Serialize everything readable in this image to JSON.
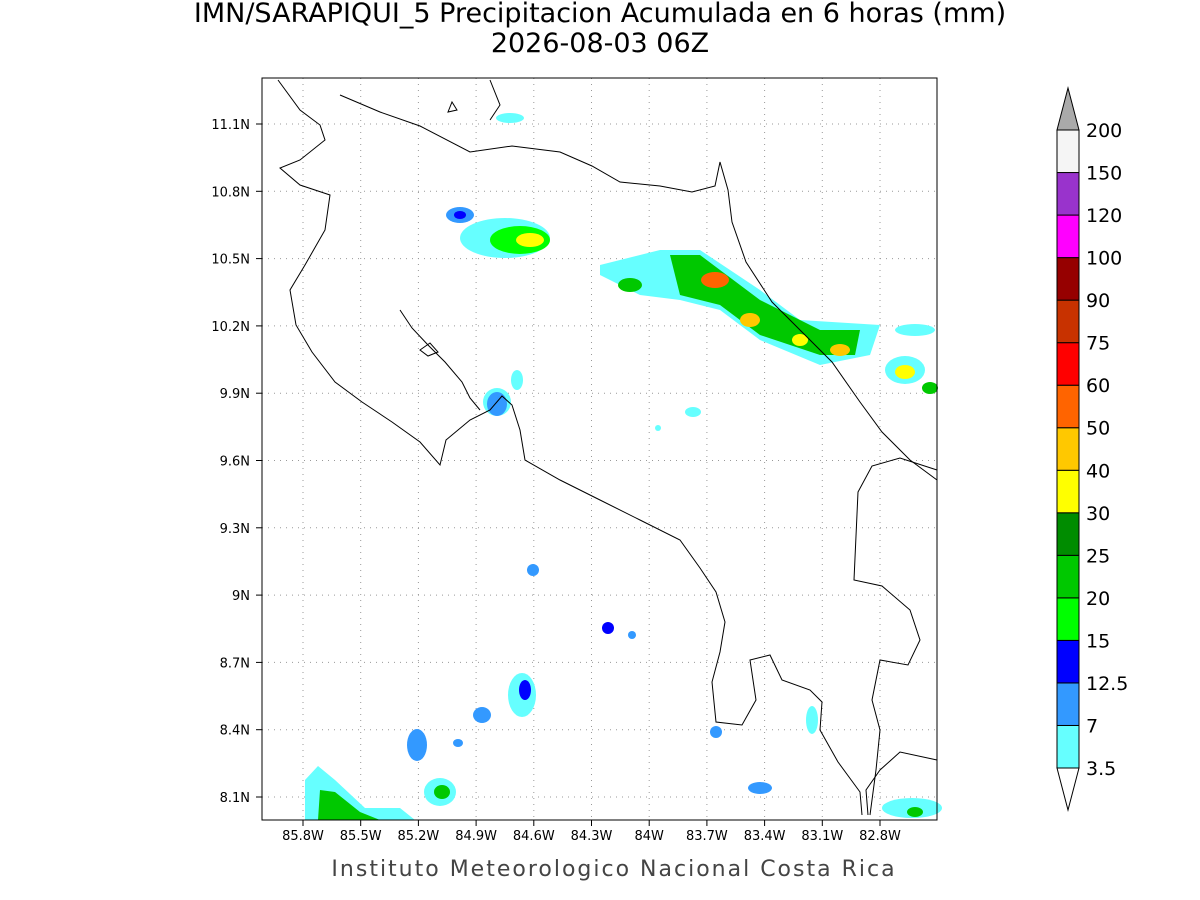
{
  "header": {
    "title": "IMN/SARAPIQUI_5 Precipitacion Acumulada en 6 horas (mm)",
    "subtitle": "2026-08-03 06Z"
  },
  "map": {
    "lon_labels": [
      "85.8W",
      "85.5W",
      "85.2W",
      "84.9W",
      "84.6W",
      "84.3W",
      "84W",
      "83.7W",
      "83.4W",
      "83.1W",
      "82.8W"
    ],
    "lat_labels": [
      "11.1N",
      "10.8N",
      "10.5N",
      "10.2N",
      "9.9N",
      "9.6N",
      "9.3N",
      "9N",
      "8.7N",
      "8.4N",
      "8.1N"
    ]
  },
  "colorbar": {
    "levels": [
      "3.5",
      "7",
      "12.5",
      "15",
      "20",
      "25",
      "30",
      "40",
      "50",
      "60",
      "75",
      "90",
      "100",
      "120",
      "150",
      "200"
    ],
    "colors": [
      "#66ffff",
      "#3399ff",
      "#0000ff",
      "#00ff00",
      "#00c800",
      "#008c00",
      "#ffff00",
      "#ffc800",
      "#ff6400",
      "#ff0000",
      "#c83200",
      "#960000",
      "#ff00ff",
      "#9933cc",
      "#f5f5f5"
    ]
  },
  "footer": {
    "text": "Instituto Meteorologico Nacional Costa Rica"
  }
}
